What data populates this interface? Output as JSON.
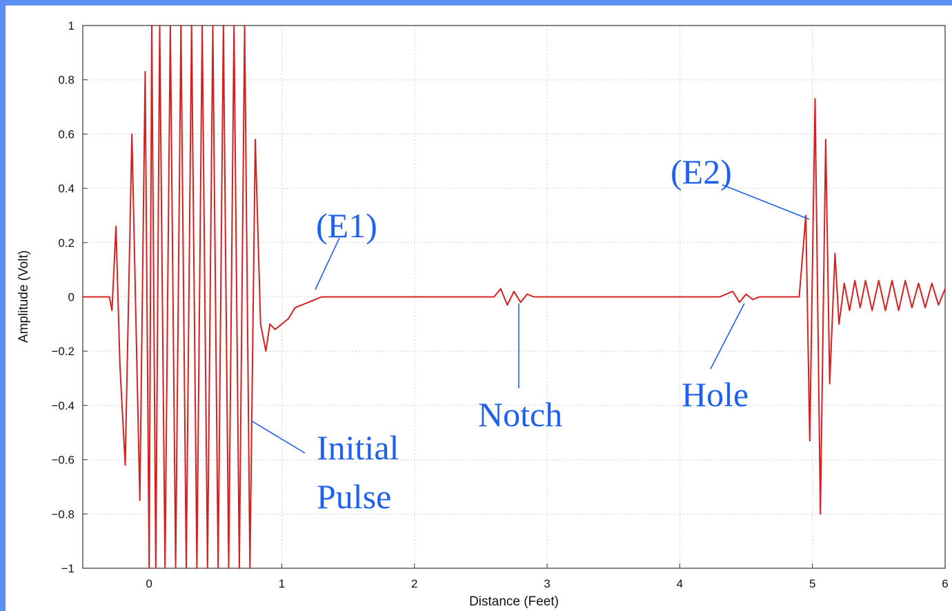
{
  "chart_data": {
    "type": "line",
    "title": "",
    "xlabel": "Distance (Feet)",
    "ylabel": "Amplitude (Volt)",
    "xlim": [
      -0.5,
      6
    ],
    "ylim": [
      -1,
      1
    ],
    "grid": true,
    "x_ticks": [
      "0",
      "1",
      "2",
      "3",
      "4",
      "5",
      "6"
    ],
    "y_ticks": [
      "1",
      "0.8",
      "0.6",
      "0.4",
      "0.2",
      "0",
      "−0.2",
      "−0.4",
      "−0.6",
      "−0.8",
      "−1"
    ],
    "series": [
      {
        "color": "#d42020",
        "x": [
          -0.5,
          -0.3,
          -0.28,
          -0.25,
          -0.22,
          -0.18,
          -0.13,
          -0.07,
          -0.03,
          0.0,
          0.02,
          0.05,
          0.08,
          0.12,
          0.16,
          0.2,
          0.24,
          0.28,
          0.32,
          0.36,
          0.4,
          0.44,
          0.48,
          0.52,
          0.56,
          0.6,
          0.64,
          0.68,
          0.72,
          0.76,
          0.8,
          0.84,
          0.88,
          0.91,
          0.95,
          1.0,
          1.05,
          1.1,
          1.15,
          1.2,
          1.25,
          1.3,
          1.35,
          1.4,
          1.5,
          1.7,
          2.0,
          2.3,
          2.6,
          2.65,
          2.7,
          2.75,
          2.8,
          2.85,
          2.9,
          3.1,
          3.5,
          4.0,
          4.3,
          4.4,
          4.45,
          4.5,
          4.55,
          4.6,
          4.7,
          4.9,
          4.95,
          4.98,
          5.02,
          5.06,
          5.1,
          5.13,
          5.17,
          5.2,
          5.24,
          5.28,
          5.32,
          5.36,
          5.4,
          5.45,
          5.5,
          5.55,
          5.6,
          5.65,
          5.7,
          5.75,
          5.8,
          5.85,
          5.9,
          5.95,
          6.0
        ],
        "y": [
          0,
          0,
          -0.05,
          0.26,
          -0.25,
          -0.62,
          0.6,
          -0.75,
          0.83,
          -1.0,
          1.0,
          -1.0,
          1.0,
          -1.0,
          1.0,
          -1.0,
          1.0,
          -1.0,
          1.0,
          -1.0,
          1.0,
          -1.0,
          1.0,
          -1.0,
          1.0,
          -1.0,
          1.0,
          -1.0,
          1.0,
          -1.0,
          0.58,
          -0.1,
          -0.2,
          -0.1,
          -0.12,
          -0.1,
          -0.08,
          -0.04,
          -0.03,
          -0.02,
          -0.01,
          0.0,
          0.0,
          0.0,
          0.0,
          0.0,
          0.0,
          0.0,
          0.0,
          0.03,
          -0.03,
          0.02,
          -0.02,
          0.01,
          0.0,
          0.0,
          0.0,
          0.0,
          0.0,
          0.02,
          -0.02,
          0.01,
          -0.01,
          0.0,
          0.0,
          0.0,
          0.3,
          -0.53,
          0.73,
          -0.8,
          0.58,
          -0.32,
          0.16,
          -0.1,
          0.05,
          -0.05,
          0.06,
          -0.04,
          0.06,
          -0.05,
          0.06,
          -0.05,
          0.06,
          -0.05,
          0.06,
          -0.04,
          0.05,
          -0.04,
          0.05,
          -0.03,
          0.03
        ]
      }
    ],
    "annotations": [
      {
        "text": "(E1)",
        "x": 1.25,
        "y": 0.25
      },
      {
        "text": "(E2)",
        "x": 5.0,
        "y": 0.45
      },
      {
        "text": "Notch",
        "x": 2.75,
        "y": -0.42
      },
      {
        "text": "Hole",
        "x": 4.5,
        "y": -0.35
      },
      {
        "text": "Initial",
        "x": 1.5,
        "y": -0.55
      },
      {
        "text": "Pulse",
        "x": 1.5,
        "y": -0.73
      }
    ]
  }
}
